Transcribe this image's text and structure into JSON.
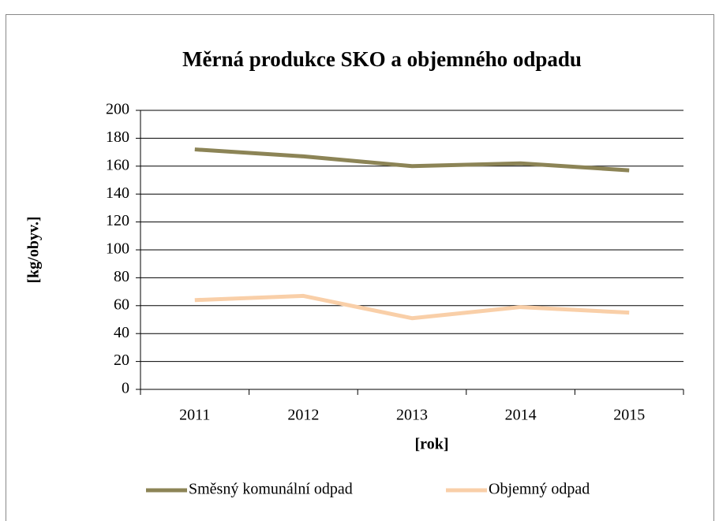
{
  "chart_data": {
    "type": "line",
    "title": "Měrná produkce SKO a objemného odpadu",
    "xlabel": "[rok]",
    "ylabel": "[kg/obyv.]",
    "categories": [
      "2011",
      "2012",
      "2013",
      "2014",
      "2015"
    ],
    "series": [
      {
        "name": "Směsný komunální odpad",
        "color": "#8c8456",
        "values": [
          172,
          167,
          160,
          162,
          157
        ]
      },
      {
        "name": "Objemný odpad",
        "color": "#f9cfa8",
        "values": [
          64,
          67,
          51,
          59,
          55
        ]
      }
    ],
    "ylim": [
      0,
      200
    ],
    "yticks": [
      0,
      20,
      40,
      60,
      80,
      100,
      120,
      140,
      160,
      180,
      200
    ],
    "grid": true,
    "legend": "bottom"
  }
}
